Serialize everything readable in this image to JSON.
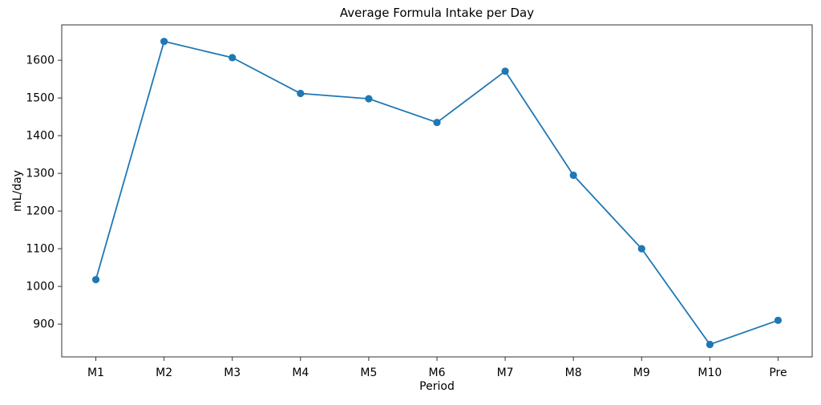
{
  "chart_data": {
    "type": "line",
    "title": "Average Formula Intake per Day",
    "xlabel": "Period",
    "ylabel": "mL/day",
    "categories": [
      "M1",
      "M2",
      "M3",
      "M4",
      "M5",
      "M6",
      "M7",
      "M8",
      "M9",
      "M10",
      "Pre"
    ],
    "values": [
      1018,
      1650,
      1607,
      1512,
      1498,
      1435,
      1571,
      1295,
      1100,
      846,
      910
    ],
    "yticks": [
      900,
      1000,
      1100,
      1200,
      1300,
      1400,
      1500,
      1600
    ],
    "ylim": [
      813,
      1694
    ],
    "xlim": [
      -0.5,
      10.5
    ],
    "grid": false,
    "legend": false,
    "line_color": "#1f77b4",
    "marker": "circle",
    "spine_color": "#333333"
  }
}
